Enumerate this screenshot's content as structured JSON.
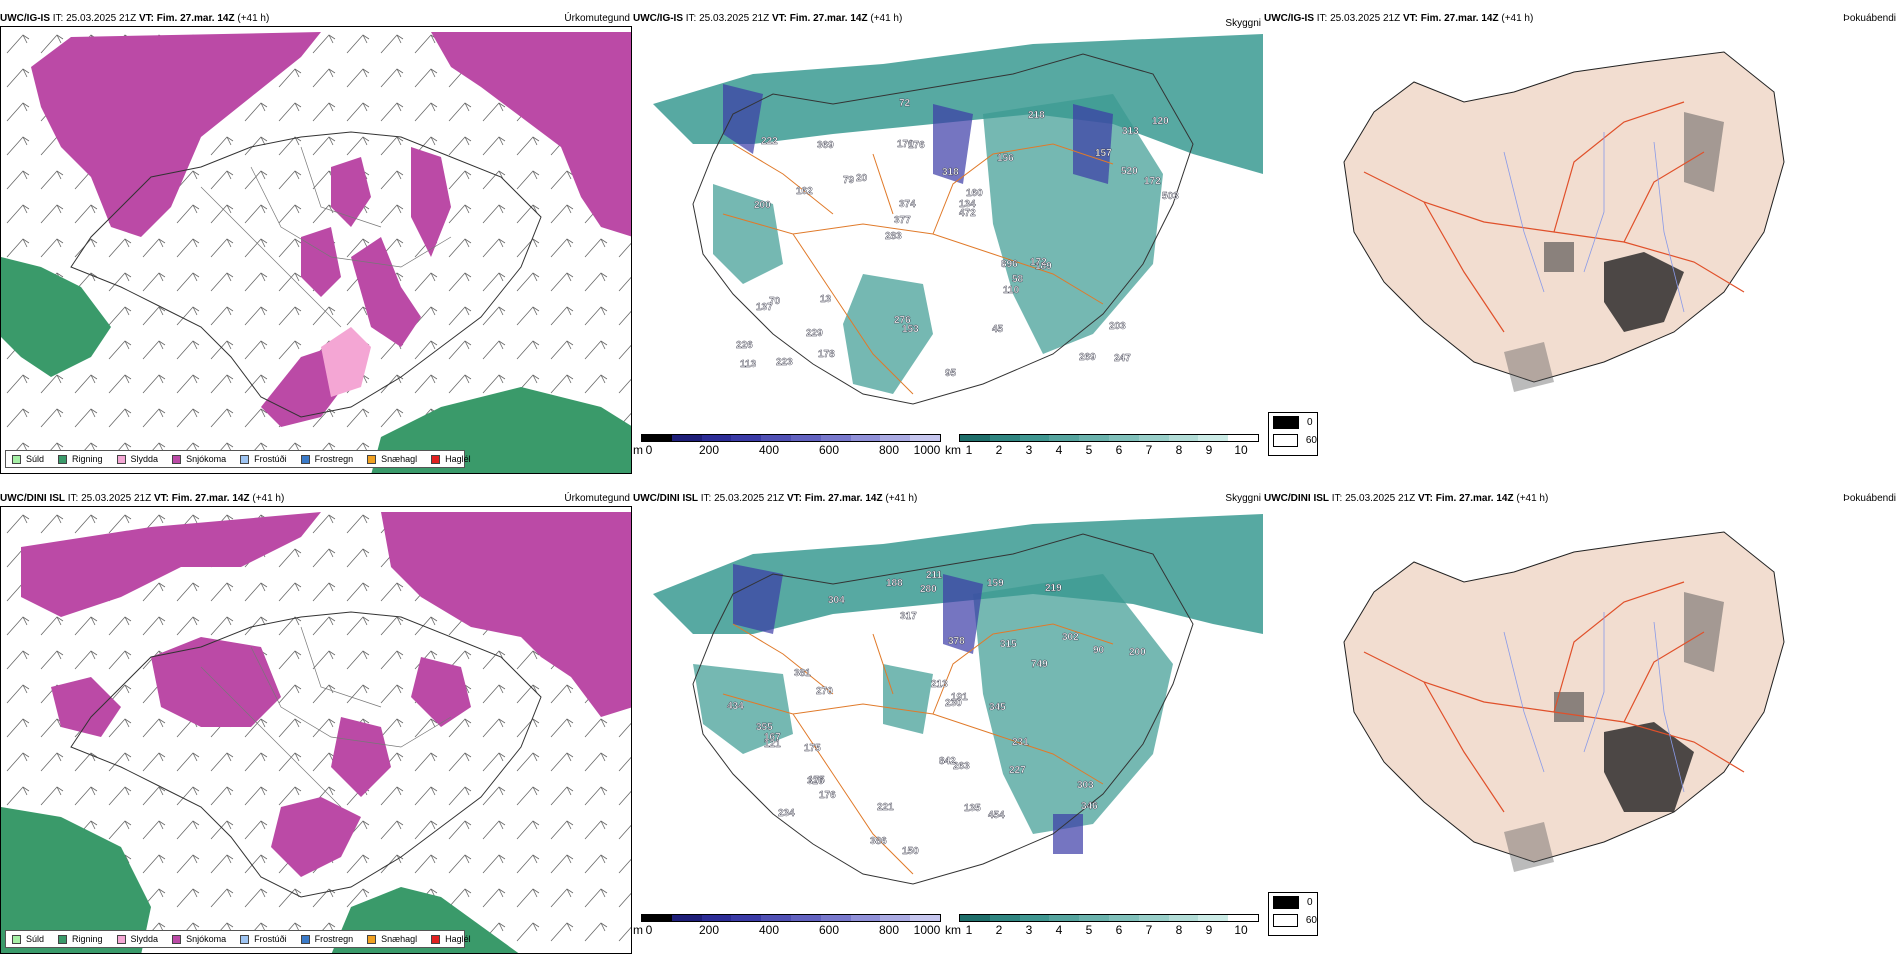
{
  "rows": [
    {
      "model": "UWC/IG-IS",
      "it_label": "IT:",
      "it_value": "25.03.2025 21Z",
      "vt_label": "VT:",
      "vt_value": "Fim. 27.mar. 14Z",
      "lead": "(+41 h)",
      "titles": {
        "precip": "Úrkomutegund",
        "cloud": "Skyggni",
        "fog": "Þokuábendi"
      },
      "cloud_labels": [
        "247",
        "200",
        "313",
        "283",
        "156",
        "223",
        "170",
        "318",
        "70",
        "20",
        "226",
        "229",
        "176",
        "160",
        "189",
        "222",
        "72",
        "503",
        "896",
        "520",
        "377",
        "276",
        "374",
        "369",
        "218",
        "13",
        "269",
        "203",
        "172",
        "95",
        "79",
        "162",
        "110",
        "178",
        "172",
        "134",
        "113",
        "153",
        "472",
        "137",
        "157",
        "120",
        "58",
        "45"
      ]
    },
    {
      "model": "UWC/DINI ISL",
      "it_label": "IT:",
      "it_value": "25.03.2025 21Z",
      "vt_label": "VT:",
      "vt_value": "Fim. 27.mar. 14Z",
      "lead": "(+41 h)",
      "titles": {
        "precip": "Úrkomutegund",
        "cloud": "Skyggni",
        "fog": "Þokuábendi"
      },
      "cloud_labels": [
        "234",
        "219",
        "304",
        "302",
        "263",
        "270",
        "175",
        "175",
        "90",
        "749",
        "355",
        "211",
        "227",
        "230",
        "150",
        "188",
        "346",
        "434",
        "326",
        "386",
        "454",
        "280",
        "317",
        "191",
        "213",
        "221",
        "167",
        "159",
        "378",
        "231",
        "381",
        "176",
        "135",
        "842",
        "303",
        "121",
        "200",
        "345",
        "315"
      ]
    }
  ],
  "precip_legend": [
    {
      "label": "Súld",
      "color": "#a6f0a6"
    },
    {
      "label": "Rigning",
      "color": "#3a9a6a"
    },
    {
      "label": "Slydda",
      "color": "#f4a6d4"
    },
    {
      "label": "Snjókoma",
      "color": "#bb4aa6"
    },
    {
      "label": "Frostúði",
      "color": "#9ec4f2"
    },
    {
      "label": "Frostregn",
      "color": "#3a7ac8"
    },
    {
      "label": "Snæhagl",
      "color": "#f0a020"
    },
    {
      "label": "Haglél",
      "color": "#e02020"
    }
  ],
  "cbar_m": {
    "unit": "m",
    "ticks": [
      "0",
      "200",
      "400",
      "600",
      "800",
      "1000"
    ],
    "colors": [
      "#000000",
      "#1e1e78",
      "#2c2c96",
      "#3a3aa6",
      "#5050b4",
      "#6262c0",
      "#7878cc",
      "#9090d8",
      "#aaaae2",
      "#c6c6ee"
    ]
  },
  "cbar_km": {
    "unit": "km",
    "ticks": [
      "1",
      "2",
      "3",
      "4",
      "5",
      "6",
      "7",
      "8",
      "9",
      "10"
    ],
    "colors": [
      "#1e6e6a",
      "#2f8580",
      "#3f9690",
      "#55a49e",
      "#6ab2ac",
      "#80c0ba",
      "#98cec8",
      "#b2dcd6",
      "#ccebe6",
      "#ffffff"
    ]
  },
  "fog_legend": [
    {
      "label": "0",
      "color": "#000000"
    },
    {
      "label": "60",
      "color": "#ffffff"
    }
  ],
  "colors": {
    "snow": "#bb4aa6",
    "rain": "#3a9a6a",
    "sleet": "#f4a6d4",
    "cloud_teal": "#3a9a92",
    "cloud_blue": "#3a3aa6",
    "roads": "#e07a2a",
    "land_fog": "#f2ddd0",
    "rivers": "#8a9ae8",
    "roads_red": "#e0502a"
  }
}
